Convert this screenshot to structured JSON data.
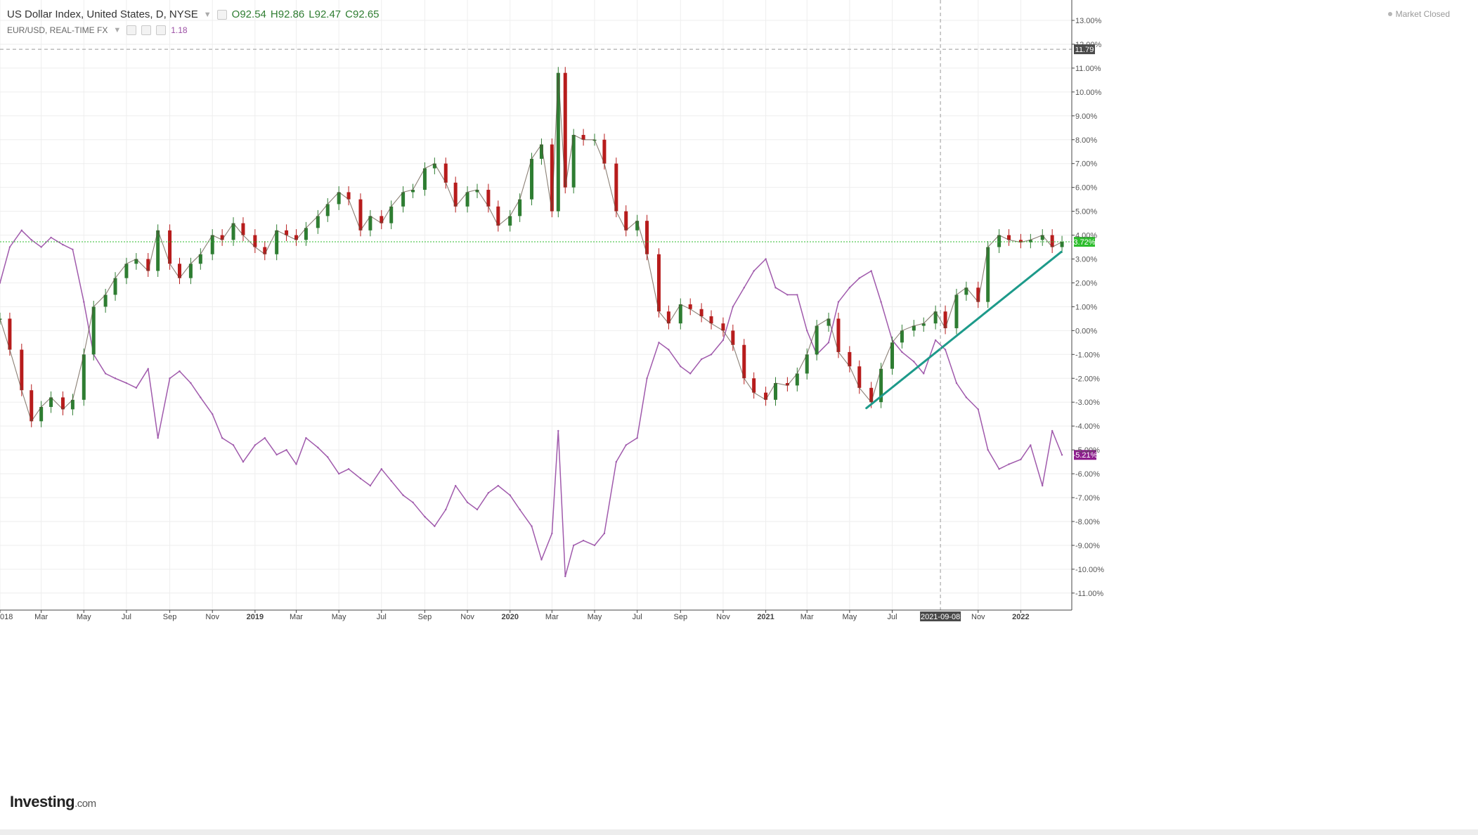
{
  "legend": {
    "main_title": "US Dollar Index, United States, D, NYSE",
    "ohlc": {
      "open": "O92.54",
      "high": "H92.86",
      "low": "L92.47",
      "close": "C92.65"
    },
    "compare_title": "EUR/USD, REAL-TIME FX",
    "compare_value": "1.18"
  },
  "status": "Market Closed",
  "logo": {
    "brand": "Investing",
    "suffix": ".com"
  },
  "colors": {
    "up": "#2e7d32",
    "down": "#b71c1c",
    "compare": "#a05aac",
    "trendline": "#1d9a8a",
    "last_price": "#2dbd2d",
    "compare_badge": "#8e1f8e",
    "grid": "#eeeeee",
    "crosshair": "#999999"
  },
  "chart_data": {
    "type": "line",
    "y_unit": "%",
    "ylim": [
      -11.6,
      13.4
    ],
    "xlim": [
      "2018-01-01",
      "2022-03-15"
    ],
    "grid": true,
    "y_ticks": [
      "13.00%",
      "12.00%",
      "11.00%",
      "10.00%",
      "9.00%",
      "8.00%",
      "7.00%",
      "6.00%",
      "5.00%",
      "4.00%",
      "3.00%",
      "2.00%",
      "1.00%",
      "0.00%",
      "-1.00%",
      "-2.00%",
      "-3.00%",
      "-4.00%",
      "-5.00%",
      "-6.00%",
      "-7.00%",
      "-8.00%",
      "-9.00%",
      "-10.00%",
      "-11.00%"
    ],
    "x_ticks": [
      {
        "label": "018",
        "date": "2018-01-01"
      },
      {
        "label": "Mar",
        "date": "2018-03-01"
      },
      {
        "label": "May",
        "date": "2018-05-01"
      },
      {
        "label": "Jul",
        "date": "2018-07-01"
      },
      {
        "label": "Sep",
        "date": "2018-09-01"
      },
      {
        "label": "Nov",
        "date": "2018-11-01"
      },
      {
        "label": "2019",
        "date": "2019-01-01"
      },
      {
        "label": "Mar",
        "date": "2019-03-01"
      },
      {
        "label": "May",
        "date": "2019-05-01"
      },
      {
        "label": "Jul",
        "date": "2019-07-01"
      },
      {
        "label": "Sep",
        "date": "2019-09-01"
      },
      {
        "label": "Nov",
        "date": "2019-11-01"
      },
      {
        "label": "2020",
        "date": "2020-01-01"
      },
      {
        "label": "Mar",
        "date": "2020-03-01"
      },
      {
        "label": "May",
        "date": "2020-05-01"
      },
      {
        "label": "Jul",
        "date": "2020-07-01"
      },
      {
        "label": "Sep",
        "date": "2020-09-01"
      },
      {
        "label": "Nov",
        "date": "2020-11-01"
      },
      {
        "label": "2021",
        "date": "2021-01-01"
      },
      {
        "label": "Mar",
        "date": "2021-03-01"
      },
      {
        "label": "May",
        "date": "2021-05-01"
      },
      {
        "label": "Jul",
        "date": "2021-07-01"
      },
      {
        "label": "Nov",
        "date": "2021-11-01"
      },
      {
        "label": "2022",
        "date": "2022-01-01"
      }
    ],
    "crosshair": {
      "date": "2021-09-08",
      "date_label": "2021-09-08",
      "value": 11.79,
      "value_label": "11.79"
    },
    "last_value_lines": [
      {
        "series": "US Dollar Index",
        "value": 3.72,
        "label": "3.72%"
      },
      {
        "series": "EUR/USD",
        "value": -5.21,
        "label": "-5.21%"
      }
    ],
    "trendline": {
      "from": {
        "date": "2021-05-25",
        "value": -3.25
      },
      "to": {
        "date": "2022-02-28",
        "value": 3.3
      }
    },
    "series": [
      {
        "name": "US Dollar Index",
        "style": "candles",
        "x": [
          "2018-01-01",
          "2018-01-15",
          "2018-02-01",
          "2018-02-15",
          "2018-03-01",
          "2018-03-15",
          "2018-04-01",
          "2018-04-15",
          "2018-05-01",
          "2018-05-15",
          "2018-06-01",
          "2018-06-15",
          "2018-07-01",
          "2018-07-15",
          "2018-08-01",
          "2018-08-15",
          "2018-09-01",
          "2018-09-15",
          "2018-10-01",
          "2018-10-15",
          "2018-11-01",
          "2018-11-15",
          "2018-12-01",
          "2018-12-15",
          "2019-01-01",
          "2019-01-15",
          "2019-02-01",
          "2019-02-15",
          "2019-03-01",
          "2019-03-15",
          "2019-04-01",
          "2019-04-15",
          "2019-05-01",
          "2019-05-15",
          "2019-06-01",
          "2019-06-15",
          "2019-07-01",
          "2019-07-15",
          "2019-08-01",
          "2019-08-15",
          "2019-09-01",
          "2019-09-15",
          "2019-10-01",
          "2019-10-15",
          "2019-11-01",
          "2019-11-15",
          "2019-12-01",
          "2019-12-15",
          "2020-01-01",
          "2020-01-15",
          "2020-02-01",
          "2020-02-15",
          "2020-03-01",
          "2020-03-10",
          "2020-03-20",
          "2020-04-01",
          "2020-04-15",
          "2020-05-01",
          "2020-05-15",
          "2020-06-01",
          "2020-06-15",
          "2020-07-01",
          "2020-07-15",
          "2020-08-01",
          "2020-08-15",
          "2020-09-01",
          "2020-09-15",
          "2020-10-01",
          "2020-10-15",
          "2020-11-01",
          "2020-11-15",
          "2020-12-01",
          "2020-12-15",
          "2021-01-01",
          "2021-01-15",
          "2021-02-01",
          "2021-02-15",
          "2021-03-01",
          "2021-03-15",
          "2021-04-01",
          "2021-04-15",
          "2021-05-01",
          "2021-05-15",
          "2021-06-01",
          "2021-06-15",
          "2021-07-01",
          "2021-07-15",
          "2021-08-01",
          "2021-08-15",
          "2021-09-01",
          "2021-09-15",
          "2021-10-01",
          "2021-10-15",
          "2021-11-01",
          "2021-11-15",
          "2021-12-01",
          "2021-12-15",
          "2022-01-01",
          "2022-01-15",
          "2022-02-01",
          "2022-02-15",
          "2022-03-01"
        ],
        "values": [
          0.5,
          -0.8,
          -2.5,
          -3.8,
          -3.2,
          -2.8,
          -3.3,
          -2.9,
          -1.0,
          1.0,
          1.5,
          2.2,
          2.8,
          3.0,
          2.5,
          4.2,
          2.8,
          2.2,
          2.8,
          3.2,
          4.0,
          3.8,
          4.5,
          4.0,
          3.5,
          3.2,
          4.2,
          4.0,
          3.8,
          4.3,
          4.8,
          5.3,
          5.8,
          5.5,
          4.2,
          4.8,
          4.5,
          5.2,
          5.8,
          5.9,
          6.8,
          7.0,
          6.2,
          5.2,
          5.8,
          5.9,
          5.2,
          4.4,
          4.8,
          5.5,
          7.2,
          7.8,
          5.0,
          10.8,
          6.0,
          8.2,
          8.0,
          8.0,
          7.0,
          5.0,
          4.2,
          4.6,
          3.2,
          0.8,
          0.3,
          1.1,
          0.9,
          0.6,
          0.3,
          0.0,
          -0.6,
          -2.0,
          -2.6,
          -2.9,
          -2.2,
          -2.3,
          -1.8,
          -1.0,
          0.2,
          0.5,
          -0.9,
          -1.5,
          -2.4,
          -3.0,
          -1.6,
          -0.5,
          0.0,
          0.2,
          0.3,
          0.8,
          0.1,
          1.5,
          1.8,
          1.2,
          3.5,
          4.0,
          3.8,
          3.7,
          3.8,
          4.0,
          3.5,
          3.72
        ]
      },
      {
        "name": "EUR/USD",
        "style": "line",
        "x": [
          "2018-01-01",
          "2018-01-15",
          "2018-02-01",
          "2018-02-15",
          "2018-03-01",
          "2018-03-15",
          "2018-04-01",
          "2018-04-15",
          "2018-05-01",
          "2018-05-15",
          "2018-06-01",
          "2018-06-15",
          "2018-07-01",
          "2018-07-15",
          "2018-08-01",
          "2018-08-15",
          "2018-09-01",
          "2018-09-15",
          "2018-10-01",
          "2018-10-15",
          "2018-11-01",
          "2018-11-15",
          "2018-12-01",
          "2018-12-15",
          "2019-01-01",
          "2019-01-15",
          "2019-02-01",
          "2019-02-15",
          "2019-03-01",
          "2019-03-15",
          "2019-04-01",
          "2019-04-15",
          "2019-05-01",
          "2019-05-15",
          "2019-06-01",
          "2019-06-15",
          "2019-07-01",
          "2019-07-15",
          "2019-08-01",
          "2019-08-15",
          "2019-09-01",
          "2019-09-15",
          "2019-10-01",
          "2019-10-15",
          "2019-11-01",
          "2019-11-15",
          "2019-12-01",
          "2019-12-15",
          "2020-01-01",
          "2020-01-15",
          "2020-02-01",
          "2020-02-15",
          "2020-03-01",
          "2020-03-10",
          "2020-03-20",
          "2020-04-01",
          "2020-04-15",
          "2020-05-01",
          "2020-05-15",
          "2020-06-01",
          "2020-06-15",
          "2020-07-01",
          "2020-07-15",
          "2020-08-01",
          "2020-08-15",
          "2020-09-01",
          "2020-09-15",
          "2020-10-01",
          "2020-10-15",
          "2020-11-01",
          "2020-11-15",
          "2020-12-01",
          "2020-12-15",
          "2021-01-01",
          "2021-01-15",
          "2021-02-01",
          "2021-02-15",
          "2021-03-01",
          "2021-03-15",
          "2021-04-01",
          "2021-04-15",
          "2021-05-01",
          "2021-05-15",
          "2021-06-01",
          "2021-06-15",
          "2021-07-01",
          "2021-07-15",
          "2021-08-01",
          "2021-08-15",
          "2021-09-01",
          "2021-09-15",
          "2021-10-01",
          "2021-10-15",
          "2021-11-01",
          "2021-11-15",
          "2021-12-01",
          "2021-12-15",
          "2022-01-01",
          "2022-01-15",
          "2022-02-01",
          "2022-02-15",
          "2022-03-01"
        ],
        "values": [
          2.0,
          3.5,
          4.2,
          3.8,
          3.5,
          3.9,
          3.6,
          3.4,
          1.2,
          -1.0,
          -1.8,
          -2.0,
          -2.2,
          -2.4,
          -1.6,
          -4.5,
          -2.0,
          -1.7,
          -2.2,
          -2.8,
          -3.5,
          -4.5,
          -4.8,
          -5.5,
          -4.8,
          -4.5,
          -5.2,
          -5.0,
          -5.6,
          -4.5,
          -4.9,
          -5.3,
          -6.0,
          -5.8,
          -6.2,
          -6.5,
          -5.8,
          -6.3,
          -6.9,
          -7.2,
          -7.8,
          -8.2,
          -7.5,
          -6.5,
          -7.2,
          -7.5,
          -6.8,
          -6.5,
          -6.9,
          -7.5,
          -8.2,
          -9.6,
          -8.5,
          -4.2,
          -10.3,
          -9.0,
          -8.8,
          -9.0,
          -8.5,
          -5.5,
          -4.8,
          -4.5,
          -2.0,
          -0.5,
          -0.8,
          -1.5,
          -1.8,
          -1.2,
          -1.0,
          -0.4,
          1.0,
          1.8,
          2.5,
          3.0,
          1.8,
          1.5,
          1.5,
          0.0,
          -1.0,
          -0.5,
          1.2,
          1.8,
          2.2,
          2.5,
          1.2,
          -0.4,
          -0.9,
          -1.3,
          -1.8,
          -0.4,
          -0.8,
          -2.2,
          -2.8,
          -3.3,
          -5.0,
          -5.8,
          -5.6,
          -5.4,
          -4.8,
          -6.5,
          -4.2,
          -5.21
        ]
      }
    ]
  }
}
